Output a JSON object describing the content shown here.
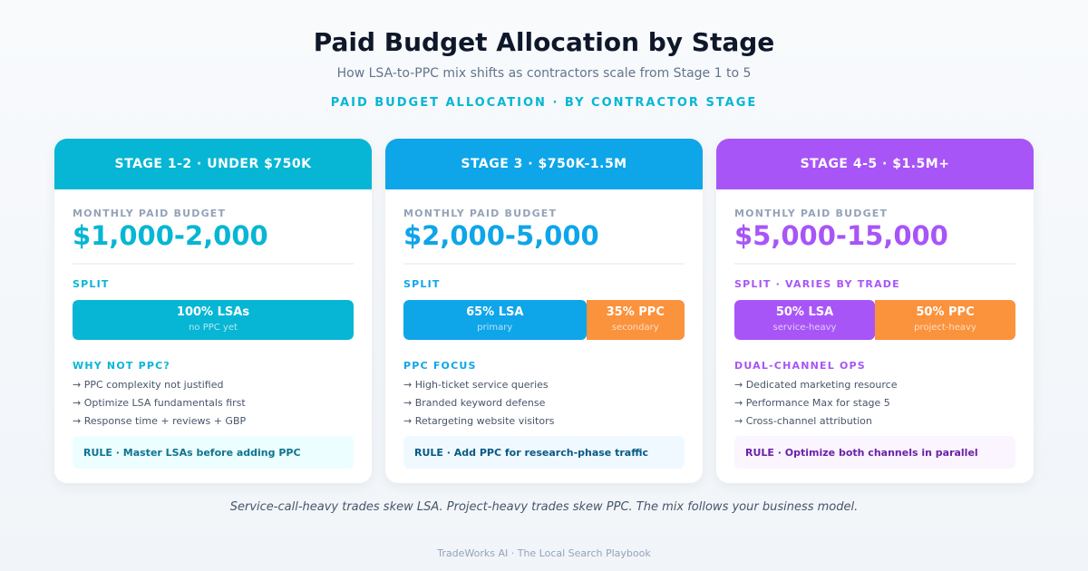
{
  "header": {
    "title": "Paid Budget Allocation by Stage",
    "subtitle": "How LSA-to-PPC mix shifts as contractors scale from Stage 1 to 5",
    "kicker": "PAID BUDGET ALLOCATION · BY CONTRACTOR STAGE"
  },
  "colors": {
    "cyan": "#06b6d4",
    "sky": "#0ea5e9",
    "purple": "#a855f7",
    "orange": "#fb923c"
  },
  "cards": [
    {
      "stage": "STAGE 1-2 · UNDER $750K",
      "budget_label": "MONTHLY PAID BUDGET",
      "budget": "$1,000-2,000",
      "split_label": "SPLIT",
      "segments": [
        {
          "main": "100% LSAs",
          "sub": "no PPC yet",
          "share": 1.0
        }
      ],
      "section_label": "WHY NOT PPC?",
      "bullets": [
        "→ PPC complexity not justified",
        "→ Optimize LSA fundamentals first",
        "→ Response time + reviews + GBP"
      ],
      "rule": "RULE · Master LSAs before adding PPC"
    },
    {
      "stage": "STAGE 3 · $750K-1.5M",
      "budget_label": "MONTHLY PAID BUDGET",
      "budget": "$2,000-5,000",
      "split_label": "SPLIT",
      "segments": [
        {
          "main": "65% LSA",
          "sub": "primary",
          "share": 0.65
        },
        {
          "main": "35% PPC",
          "sub": "secondary",
          "share": 0.35
        }
      ],
      "section_label": "PPC FOCUS",
      "bullets": [
        "→ High-ticket service queries",
        "→ Branded keyword defense",
        "→ Retargeting website visitors"
      ],
      "rule": "RULE · Add PPC for research-phase traffic"
    },
    {
      "stage": "STAGE 4-5 · $1.5M+",
      "budget_label": "MONTHLY PAID BUDGET",
      "budget": "$5,000-15,000",
      "split_label": "SPLIT · VARIES BY TRADE",
      "segments": [
        {
          "main": "50% LSA",
          "sub": "service-heavy",
          "share": 0.5
        },
        {
          "main": "50% PPC",
          "sub": "project-heavy",
          "share": 0.5
        }
      ],
      "section_label": "DUAL-CHANNEL OPS",
      "bullets": [
        "→ Dedicated marketing resource",
        "→ Performance Max for stage 5",
        "→ Cross-channel attribution"
      ],
      "rule": "RULE · Optimize both channels in parallel"
    }
  ],
  "footnote": "Service-call-heavy trades skew LSA. Project-heavy trades skew PPC. The mix follows your business model.",
  "footer": "TradeWorks AI · The Local Search Playbook"
}
